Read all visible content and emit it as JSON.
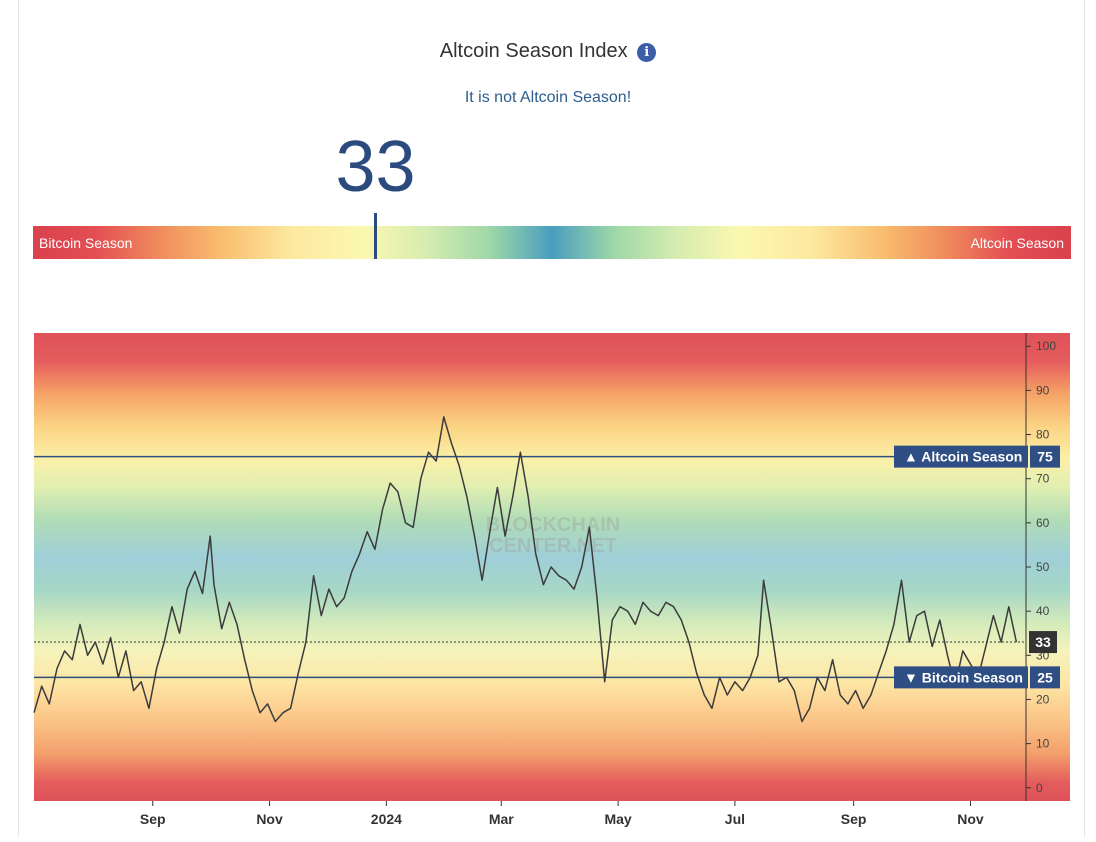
{
  "header": {
    "title": "Altcoin Season Index",
    "info_icon": "info-icon",
    "status_text": "It is not Altcoin Season!"
  },
  "gauge": {
    "value": 33,
    "value_label": "33",
    "min": 0,
    "max": 100,
    "left_label": "Bitcoin Season",
    "right_label": "Altcoin Season"
  },
  "colors": {
    "title": "#333333",
    "status": "#2c5d8e",
    "value": "#2b4a7d",
    "line": "#3b3b3b",
    "threshold": "#2c4f7c",
    "badge": "#2f4e84"
  },
  "chart_data": {
    "type": "line",
    "x_range": [
      "2023-07-01",
      "2024-11-30"
    ],
    "ylim": [
      -3,
      103
    ],
    "y_ticks": [
      0,
      10,
      20,
      30,
      40,
      50,
      60,
      70,
      80,
      90,
      100
    ],
    "x_ticks": [
      {
        "label": "Sep",
        "date": "2023-09-01"
      },
      {
        "label": "Nov",
        "date": "2023-11-01"
      },
      {
        "label": "2024",
        "date": "2024-01-01",
        "bold": true
      },
      {
        "label": "Mar",
        "date": "2024-03-01"
      },
      {
        "label": "May",
        "date": "2024-05-01"
      },
      {
        "label": "Jul",
        "date": "2024-07-01"
      },
      {
        "label": "Sep",
        "date": "2024-09-01"
      },
      {
        "label": "Nov",
        "date": "2024-11-01"
      }
    ],
    "thresholds": [
      {
        "value": 75,
        "label": "▲ Altcoin Season",
        "value_label": "75"
      },
      {
        "value": 25,
        "label": "▼ Bitcoin Season",
        "value_label": "25"
      }
    ],
    "current": {
      "value": 33,
      "label": "33"
    },
    "watermark": [
      "BLOCKCHAIN",
      "CENTER.NET"
    ],
    "grid": false,
    "series": [
      {
        "points": [
          [
            "2023-07-01",
            17
          ],
          [
            "2023-07-05",
            23
          ],
          [
            "2023-07-09",
            19
          ],
          [
            "2023-07-13",
            27
          ],
          [
            "2023-07-17",
            31
          ],
          [
            "2023-07-21",
            29
          ],
          [
            "2023-07-25",
            37
          ],
          [
            "2023-07-29",
            30
          ],
          [
            "2023-08-02",
            33
          ],
          [
            "2023-08-06",
            28
          ],
          [
            "2023-08-10",
            34
          ],
          [
            "2023-08-14",
            25
          ],
          [
            "2023-08-18",
            31
          ],
          [
            "2023-08-22",
            22
          ],
          [
            "2023-08-26",
            24
          ],
          [
            "2023-08-30",
            18
          ],
          [
            "2023-09-03",
            27
          ],
          [
            "2023-09-07",
            33
          ],
          [
            "2023-09-11",
            41
          ],
          [
            "2023-09-15",
            35
          ],
          [
            "2023-09-19",
            45
          ],
          [
            "2023-09-23",
            49
          ],
          [
            "2023-09-27",
            44
          ],
          [
            "2023-10-01",
            57
          ],
          [
            "2023-10-03",
            46
          ],
          [
            "2023-10-07",
            36
          ],
          [
            "2023-10-11",
            42
          ],
          [
            "2023-10-15",
            37
          ],
          [
            "2023-10-19",
            29
          ],
          [
            "2023-10-23",
            22
          ],
          [
            "2023-10-27",
            17
          ],
          [
            "2023-10-31",
            19
          ],
          [
            "2023-11-04",
            15
          ],
          [
            "2023-11-08",
            17
          ],
          [
            "2023-11-12",
            18
          ],
          [
            "2023-11-16",
            26
          ],
          [
            "2023-11-20",
            33
          ],
          [
            "2023-11-24",
            48
          ],
          [
            "2023-11-28",
            39
          ],
          [
            "2023-12-02",
            45
          ],
          [
            "2023-12-06",
            41
          ],
          [
            "2023-12-10",
            43
          ],
          [
            "2023-12-14",
            49
          ],
          [
            "2023-12-18",
            53
          ],
          [
            "2023-12-22",
            58
          ],
          [
            "2023-12-26",
            54
          ],
          [
            "2023-12-30",
            63
          ],
          [
            "2024-01-03",
            69
          ],
          [
            "2024-01-07",
            67
          ],
          [
            "2024-01-11",
            60
          ],
          [
            "2024-01-15",
            59
          ],
          [
            "2024-01-19",
            70
          ],
          [
            "2024-01-23",
            76
          ],
          [
            "2024-01-27",
            74
          ],
          [
            "2024-01-31",
            84
          ],
          [
            "2024-02-04",
            78
          ],
          [
            "2024-02-08",
            73
          ],
          [
            "2024-02-12",
            66
          ],
          [
            "2024-02-16",
            57
          ],
          [
            "2024-02-20",
            47
          ],
          [
            "2024-02-24",
            58
          ],
          [
            "2024-02-28",
            68
          ],
          [
            "2024-03-03",
            57
          ],
          [
            "2024-03-07",
            66
          ],
          [
            "2024-03-11",
            76
          ],
          [
            "2024-03-15",
            66
          ],
          [
            "2024-03-19",
            53
          ],
          [
            "2024-03-23",
            46
          ],
          [
            "2024-03-27",
            50
          ],
          [
            "2024-03-31",
            48
          ],
          [
            "2024-04-04",
            47
          ],
          [
            "2024-04-08",
            45
          ],
          [
            "2024-04-12",
            50
          ],
          [
            "2024-04-16",
            59
          ],
          [
            "2024-04-20",
            43
          ],
          [
            "2024-04-24",
            24
          ],
          [
            "2024-04-28",
            38
          ],
          [
            "2024-05-02",
            41
          ],
          [
            "2024-05-06",
            40
          ],
          [
            "2024-05-10",
            37
          ],
          [
            "2024-05-14",
            42
          ],
          [
            "2024-05-18",
            40
          ],
          [
            "2024-05-22",
            39
          ],
          [
            "2024-05-26",
            42
          ],
          [
            "2024-05-30",
            41
          ],
          [
            "2024-06-03",
            38
          ],
          [
            "2024-06-07",
            33
          ],
          [
            "2024-06-11",
            26
          ],
          [
            "2024-06-15",
            21
          ],
          [
            "2024-06-19",
            18
          ],
          [
            "2024-06-23",
            25
          ],
          [
            "2024-06-27",
            21
          ],
          [
            "2024-07-01",
            24
          ],
          [
            "2024-07-05",
            22
          ],
          [
            "2024-07-09",
            25
          ],
          [
            "2024-07-13",
            30
          ],
          [
            "2024-07-16",
            47
          ],
          [
            "2024-07-20",
            36
          ],
          [
            "2024-07-24",
            24
          ],
          [
            "2024-07-28",
            25
          ],
          [
            "2024-08-01",
            22
          ],
          [
            "2024-08-05",
            15
          ],
          [
            "2024-08-09",
            18
          ],
          [
            "2024-08-13",
            25
          ],
          [
            "2024-08-17",
            22
          ],
          [
            "2024-08-21",
            29
          ],
          [
            "2024-08-25",
            21
          ],
          [
            "2024-08-29",
            19
          ],
          [
            "2024-09-02",
            22
          ],
          [
            "2024-09-06",
            18
          ],
          [
            "2024-09-10",
            21
          ],
          [
            "2024-09-14",
            26
          ],
          [
            "2024-09-18",
            31
          ],
          [
            "2024-09-22",
            37
          ],
          [
            "2024-09-26",
            47
          ],
          [
            "2024-09-30",
            33
          ],
          [
            "2024-10-04",
            39
          ],
          [
            "2024-10-08",
            40
          ],
          [
            "2024-10-12",
            32
          ],
          [
            "2024-10-16",
            38
          ],
          [
            "2024-10-20",
            30
          ],
          [
            "2024-10-24",
            23
          ],
          [
            "2024-10-28",
            31
          ],
          [
            "2024-11-01",
            28
          ],
          [
            "2024-11-05",
            25
          ],
          [
            "2024-11-09",
            32
          ],
          [
            "2024-11-13",
            39
          ],
          [
            "2024-11-17",
            33
          ],
          [
            "2024-11-21",
            41
          ],
          [
            "2024-11-25",
            33
          ]
        ]
      }
    ]
  }
}
